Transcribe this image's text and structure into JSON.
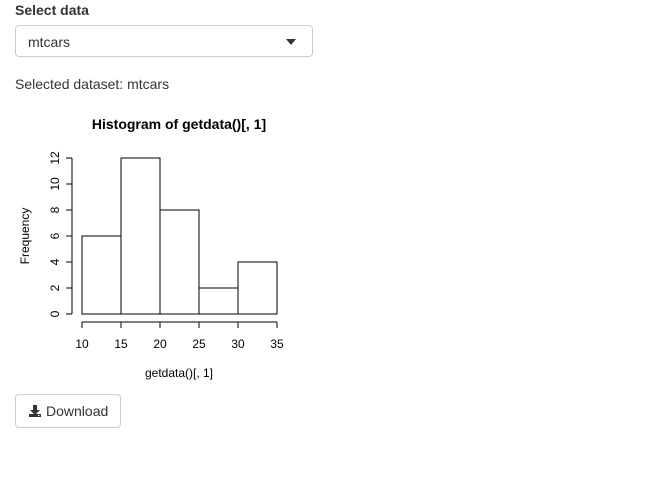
{
  "select": {
    "label": "Select data",
    "value": "mtcars"
  },
  "selected_text": "Selected dataset: mtcars",
  "download": {
    "label": "Download",
    "icon": "download-icon"
  },
  "chart_data": {
    "type": "bar",
    "title": "Histogram of getdata()[, 1]",
    "xlabel": "getdata()[, 1]",
    "ylabel": "Frequency",
    "bins": [
      [
        10,
        15
      ],
      [
        15,
        20
      ],
      [
        20,
        25
      ],
      [
        25,
        30
      ],
      [
        30,
        35
      ]
    ],
    "values": [
      6,
      12,
      8,
      2,
      4
    ],
    "xticks": [
      "10",
      "15",
      "20",
      "25",
      "30",
      "35"
    ],
    "yticks": [
      "0",
      "2",
      "4",
      "6",
      "8",
      "10",
      "12"
    ],
    "xlim": [
      10,
      35
    ],
    "ylim": [
      0,
      12
    ],
    "grid": false
  }
}
